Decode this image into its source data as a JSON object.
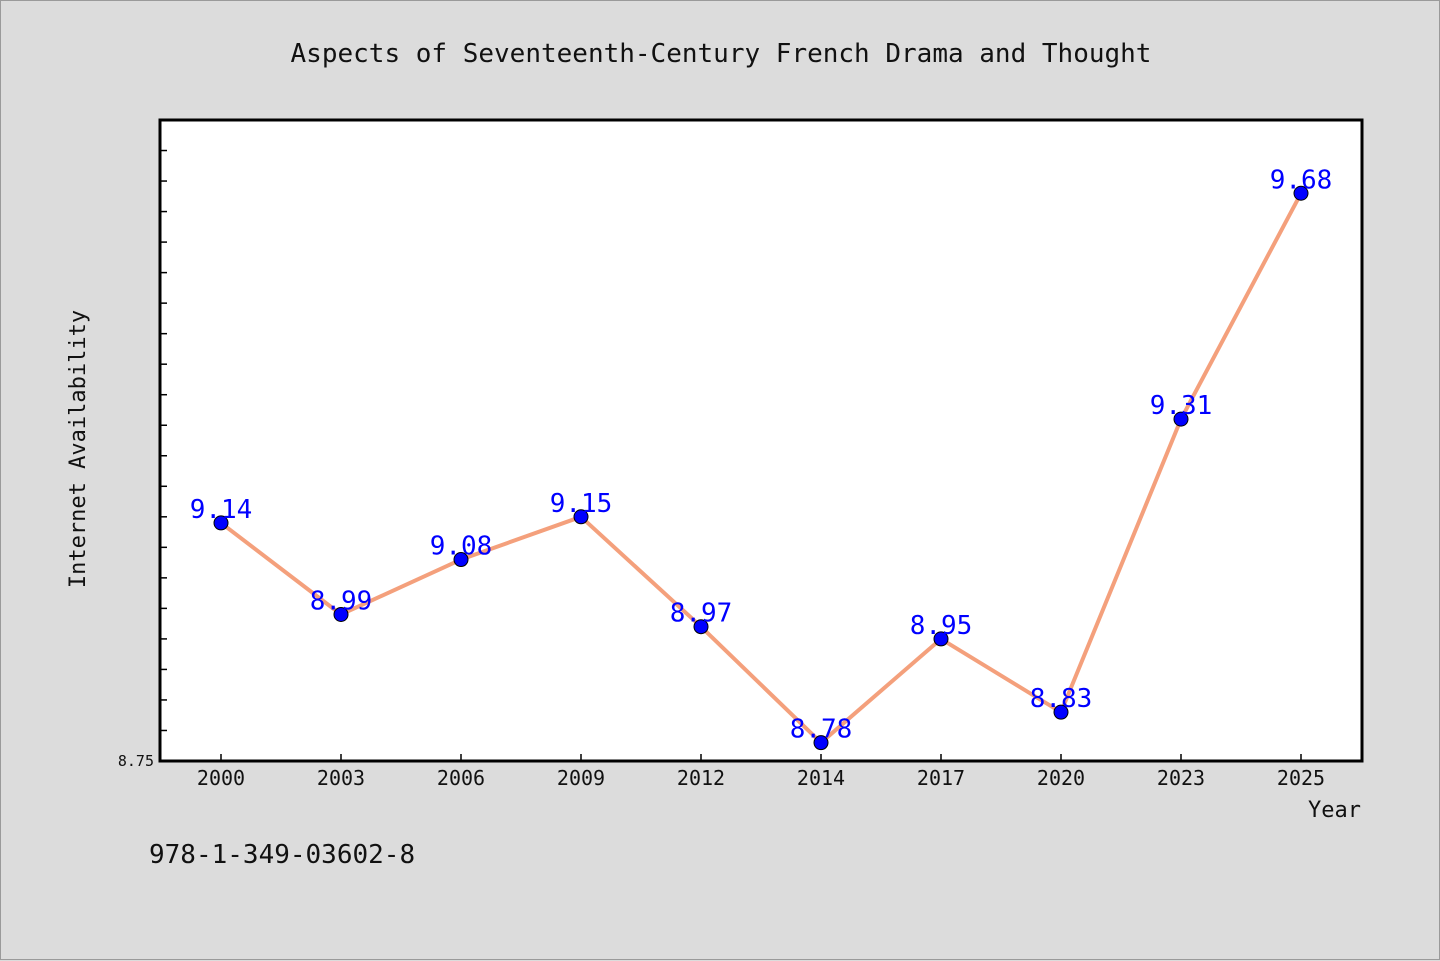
{
  "chart_data": {
    "type": "line",
    "title": "Aspects of Seventeenth-Century French Drama and Thought",
    "xlabel": "Year",
    "ylabel": "Internet Availability",
    "categories": [
      "2000",
      "2003",
      "2006",
      "2009",
      "2012",
      "2014",
      "2017",
      "2020",
      "2023",
      "2025"
    ],
    "series": [
      {
        "values": [
          9.14,
          8.99,
          9.08,
          9.15,
          8.97,
          8.78,
          8.95,
          8.83,
          9.31,
          9.68
        ]
      }
    ],
    "data_labels": [
      "9.14",
      "8.99",
      "9.08",
      "9.15",
      "8.97",
      "8.78",
      "8.95",
      "8.83",
      "9.31",
      "9.68"
    ],
    "ytick_labels": [
      "8.75"
    ],
    "ylim": [
      8.75,
      9.8
    ],
    "grid": false,
    "line_color": "#f4a07c",
    "marker_color": "#0000ff",
    "label_color": "#0000ff"
  },
  "footer_text": "978-1-349-03602-8"
}
